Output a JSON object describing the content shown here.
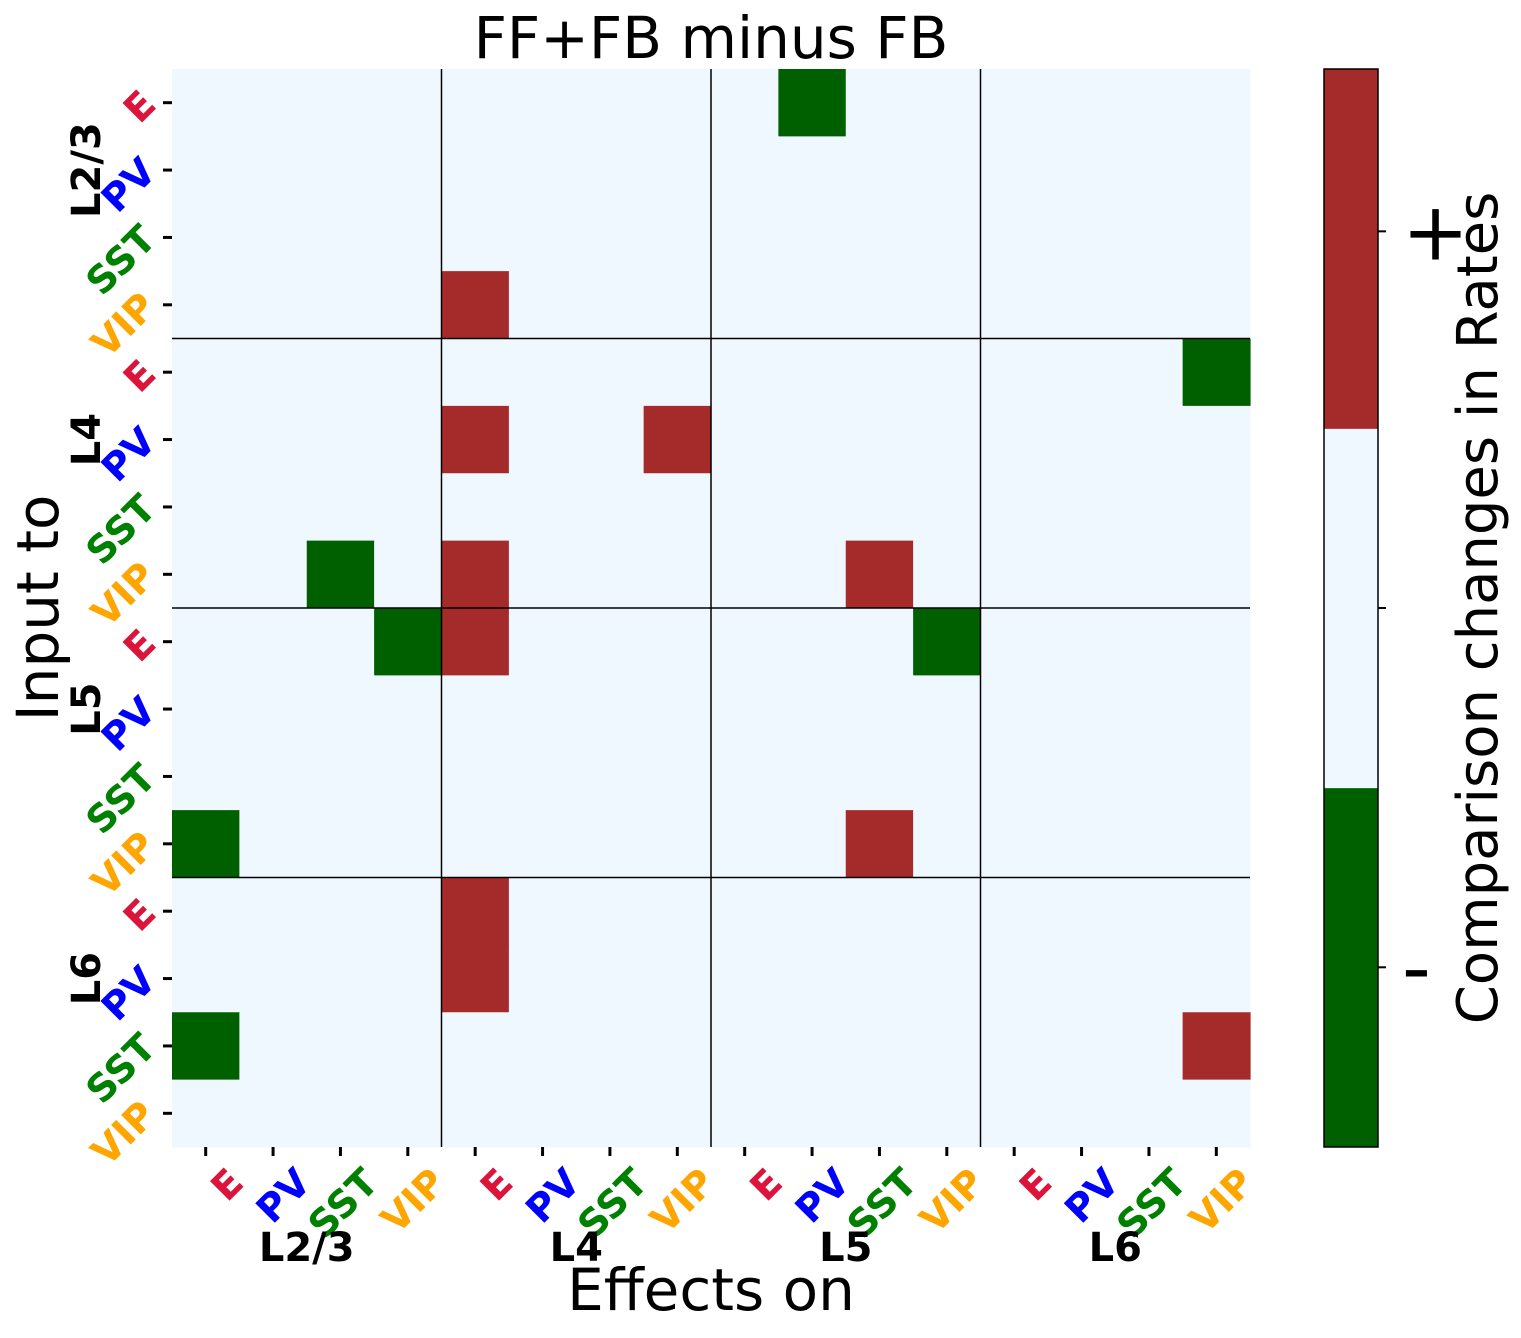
{
  "chart_data": {
    "type": "heatmap",
    "title": "FF+FB minus FB",
    "xlabel": "Effects on",
    "ylabel": "Input to",
    "colorbar": {
      "label": "Comparison changes in Rates",
      "tick_labels": [
        "-",
        "+"
      ],
      "colors": [
        "#006000",
        "#f0f8ff",
        "#a52a2a"
      ],
      "levels": [
        -1,
        0,
        1
      ]
    },
    "cell_types": [
      "E",
      "PV",
      "SST",
      "VIP"
    ],
    "cell_type_colors": {
      "E": "#dc143c",
      "PV": "#0000ff",
      "SST": "#008000",
      "VIP": "#ffa500"
    },
    "layers": [
      "L2/3",
      "L4",
      "L5",
      "L6"
    ],
    "rows": [
      "L2/3 E",
      "L2/3 PV",
      "L2/3 SST",
      "L2/3 VIP",
      "L4 E",
      "L4 PV",
      "L4 SST",
      "L4 VIP",
      "L5 E",
      "L5 PV",
      "L5 SST",
      "L5 VIP",
      "L6 E",
      "L6 PV",
      "L6 SST",
      "L6 VIP"
    ],
    "columns": [
      "L2/3 E",
      "L2/3 PV",
      "L2/3 SST",
      "L2/3 VIP",
      "L4 E",
      "L4 PV",
      "L4 SST",
      "L4 VIP",
      "L5 E",
      "L5 PV",
      "L5 SST",
      "L5 VIP",
      "L6 E",
      "L6 PV",
      "L6 SST",
      "L6 VIP"
    ],
    "values": [
      [
        0,
        0,
        0,
        0,
        0,
        0,
        0,
        0,
        0,
        -1,
        0,
        0,
        0,
        0,
        0,
        0
      ],
      [
        0,
        0,
        0,
        0,
        0,
        0,
        0,
        0,
        0,
        0,
        0,
        0,
        0,
        0,
        0,
        0
      ],
      [
        0,
        0,
        0,
        0,
        0,
        0,
        0,
        0,
        0,
        0,
        0,
        0,
        0,
        0,
        0,
        0
      ],
      [
        0,
        0,
        0,
        0,
        1,
        0,
        0,
        0,
        0,
        0,
        0,
        0,
        0,
        0,
        0,
        0
      ],
      [
        0,
        0,
        0,
        0,
        0,
        0,
        0,
        0,
        0,
        0,
        0,
        0,
        0,
        0,
        0,
        -1
      ],
      [
        0,
        0,
        0,
        0,
        1,
        0,
        0,
        1,
        0,
        0,
        0,
        0,
        0,
        0,
        0,
        0
      ],
      [
        0,
        0,
        0,
        0,
        0,
        0,
        0,
        0,
        0,
        0,
        0,
        0,
        0,
        0,
        0,
        0
      ],
      [
        0,
        0,
        -1,
        0,
        1,
        0,
        0,
        0,
        0,
        0,
        1,
        0,
        0,
        0,
        0,
        0
      ],
      [
        0,
        0,
        0,
        -1,
        1,
        0,
        0,
        0,
        0,
        0,
        0,
        -1,
        0,
        0,
        0,
        0
      ],
      [
        0,
        0,
        0,
        0,
        0,
        0,
        0,
        0,
        0,
        0,
        0,
        0,
        0,
        0,
        0,
        0
      ],
      [
        0,
        0,
        0,
        0,
        0,
        0,
        0,
        0,
        0,
        0,
        0,
        0,
        0,
        0,
        0,
        0
      ],
      [
        -1,
        0,
        0,
        0,
        0,
        0,
        0,
        0,
        0,
        0,
        1,
        0,
        0,
        0,
        0,
        0
      ],
      [
        0,
        0,
        0,
        0,
        1,
        0,
        0,
        0,
        0,
        0,
        0,
        0,
        0,
        0,
        0,
        0
      ],
      [
        0,
        0,
        0,
        0,
        1,
        0,
        0,
        0,
        0,
        0,
        0,
        0,
        0,
        0,
        0,
        0
      ],
      [
        -1,
        0,
        0,
        0,
        0,
        0,
        0,
        0,
        0,
        0,
        0,
        0,
        0,
        0,
        0,
        1
      ],
      [
        0,
        0,
        0,
        0,
        0,
        0,
        0,
        0,
        0,
        0,
        0,
        0,
        0,
        0,
        0,
        0
      ]
    ]
  }
}
